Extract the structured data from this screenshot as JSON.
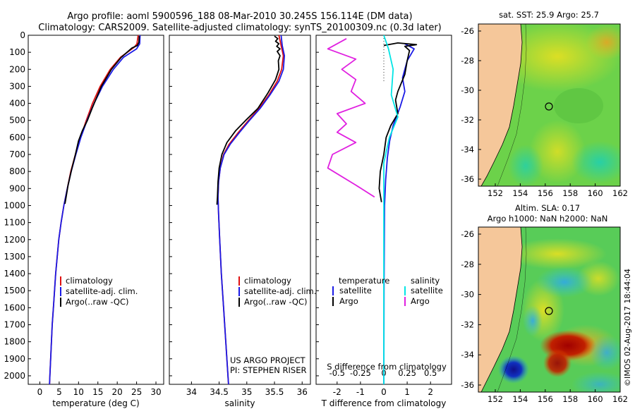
{
  "title": {
    "line1": "Argo profile: aoml 5900596_188 08-Mar-2010 30.245S 156.114E (DM data)",
    "line2": "Climatology: CARS2009. Satellite-adjusted climatology: synTS_20100309.nc (0.3d later)"
  },
  "colors": {
    "climatology": "#e01010",
    "satellite": "#1a1ae6",
    "argo": "#000000",
    "salinity_sat": "#00e5e5",
    "salinity_argo": "#e020e0",
    "land": "#f5c79a"
  },
  "panel_temp": {
    "xlabel": "temperature (deg C)",
    "legend": [
      "climatology",
      "satellite-adj. clim.",
      "Argo(..raw -QC)"
    ]
  },
  "panel_sal": {
    "xlabel": "salinity",
    "legend": [
      "climatology",
      "satellite-adj. clim.",
      "Argo(..raw -QC)"
    ],
    "credit1": "US ARGO PROJECT",
    "credit2": "PI: STEPHEN RISER"
  },
  "panel_diff": {
    "xlabel": "T difference from climatology",
    "top_axis_label": "S difference from climatology",
    "legend_temp_title": "temperature",
    "legend_sal_title": "salinity",
    "legend_temp": [
      "satellite",
      "Argo"
    ],
    "legend_sal": [
      "satellite",
      "Argo"
    ]
  },
  "map_sst": {
    "title": "sat. SST: 25.9 Argo: 25.7",
    "y_ticks": [
      "-26",
      "-28",
      "-30",
      "-32",
      "-34",
      "-36"
    ],
    "x_ticks": [
      "152",
      "154",
      "156",
      "158",
      "160",
      "162"
    ]
  },
  "map_sla": {
    "title1": "Altim. SLA: 0.17",
    "title2": "Argo h1000: NaN h2000: NaN",
    "y_ticks": [
      "-26",
      "-28",
      "-30",
      "-32",
      "-34",
      "-36"
    ],
    "x_ticks": [
      "152",
      "154",
      "156",
      "158",
      "160",
      "162"
    ]
  },
  "stamp": "©IMOS 02-Aug-2017 18:44:04",
  "chart_data": [
    {
      "type": "line",
      "xlabel": "temperature (deg C)",
      "ylabel": "depth",
      "xlim": [
        -3,
        32
      ],
      "ylim": [
        2050,
        0
      ],
      "x_ticks": [
        0,
        5,
        10,
        15,
        20,
        25,
        30
      ],
      "y_ticks": [
        0,
        100,
        200,
        300,
        400,
        500,
        600,
        700,
        800,
        900,
        1000,
        1100,
        1200,
        1300,
        1400,
        1500,
        1600,
        1700,
        1800,
        1900,
        2000
      ],
      "series": [
        {
          "name": "climatology",
          "color": "#e01010",
          "points": [
            [
              25.4,
              0
            ],
            [
              25.1,
              50
            ],
            [
              24.4,
              70
            ],
            [
              20.8,
              130
            ],
            [
              18.2,
              200
            ],
            [
              15.6,
              300
            ],
            [
              13.6,
              400
            ],
            [
              12.0,
              500
            ],
            [
              10.5,
              600
            ],
            [
              9.2,
              700
            ],
            [
              8.0,
              800
            ],
            [
              7.1,
              900
            ],
            [
              6.2,
              1000
            ],
            [
              5.5,
              1100
            ],
            [
              4.9,
              1200
            ],
            [
              4.5,
              1300
            ],
            [
              4.1,
              1400
            ],
            [
              3.8,
              1500
            ],
            [
              3.5,
              1600
            ],
            [
              3.2,
              1700
            ],
            [
              3.0,
              1800
            ],
            [
              2.8,
              1900
            ],
            [
              2.6,
              2000
            ],
            [
              2.5,
              2050
            ]
          ]
        },
        {
          "name": "satellite-adj. clim.",
          "color": "#1a1ae6",
          "points": [
            [
              25.9,
              0
            ],
            [
              25.8,
              50
            ],
            [
              25.0,
              80
            ],
            [
              21.6,
              130
            ],
            [
              19.0,
              200
            ],
            [
              16.2,
              300
            ],
            [
              14.0,
              400
            ],
            [
              12.2,
              500
            ],
            [
              10.6,
              600
            ],
            [
              9.3,
              700
            ],
            [
              8.1,
              800
            ],
            [
              7.1,
              900
            ],
            [
              6.2,
              1000
            ],
            [
              5.5,
              1100
            ],
            [
              4.9,
              1200
            ],
            [
              4.5,
              1300
            ],
            [
              4.1,
              1400
            ],
            [
              3.8,
              1500
            ],
            [
              3.5,
              1600
            ],
            [
              3.2,
              1700
            ],
            [
              3.0,
              1800
            ],
            [
              2.8,
              1900
            ],
            [
              2.6,
              2000
            ],
            [
              2.5,
              2050
            ]
          ]
        },
        {
          "name": "Argo(..raw -QC)",
          "color": "#000000",
          "points": [
            [
              25.7,
              5
            ],
            [
              25.6,
              40
            ],
            [
              25.2,
              60
            ],
            [
              23.8,
              75
            ],
            [
              21.0,
              130
            ],
            [
              18.5,
              200
            ],
            [
              15.9,
              300
            ],
            [
              13.5,
              430
            ],
            [
              12.3,
              500
            ],
            [
              11.0,
              560
            ],
            [
              10.0,
              620
            ],
            [
              9.2,
              700
            ],
            [
              8.2,
              790
            ],
            [
              7.3,
              880
            ],
            [
              6.5,
              990
            ]
          ]
        }
      ]
    },
    {
      "type": "line",
      "xlabel": "salinity",
      "ylabel": "depth",
      "xlim": [
        33.6,
        36.15
      ],
      "ylim": [
        2050,
        0
      ],
      "x_ticks": [
        34,
        34.5,
        35,
        35.5,
        36
      ],
      "series": [
        {
          "name": "climatology",
          "color": "#e01010",
          "points": [
            [
              35.58,
              0
            ],
            [
              35.62,
              60
            ],
            [
              35.66,
              120
            ],
            [
              35.63,
              200
            ],
            [
              35.55,
              270
            ],
            [
              35.4,
              350
            ],
            [
              35.22,
              430
            ],
            [
              35.03,
              500
            ],
            [
              34.85,
              570
            ],
            [
              34.68,
              640
            ],
            [
              34.58,
              700
            ],
            [
              34.52,
              780
            ],
            [
              34.49,
              860
            ],
            [
              34.48,
              950
            ],
            [
              34.49,
              1050
            ],
            [
              34.51,
              1200
            ],
            [
              34.54,
              1400
            ],
            [
              34.58,
              1600
            ],
            [
              34.62,
              1800
            ],
            [
              34.66,
              2000
            ],
            [
              34.67,
              2050
            ]
          ]
        },
        {
          "name": "satellite-adj. clim.",
          "color": "#1a1ae6",
          "points": [
            [
              35.62,
              0
            ],
            [
              35.64,
              60
            ],
            [
              35.68,
              120
            ],
            [
              35.66,
              200
            ],
            [
              35.58,
              270
            ],
            [
              35.42,
              350
            ],
            [
              35.24,
              430
            ],
            [
              35.05,
              500
            ],
            [
              34.87,
              570
            ],
            [
              34.7,
              640
            ],
            [
              34.59,
              700
            ],
            [
              34.52,
              780
            ],
            [
              34.49,
              860
            ],
            [
              34.48,
              950
            ],
            [
              34.49,
              1050
            ],
            [
              34.51,
              1200
            ],
            [
              34.54,
              1400
            ],
            [
              34.58,
              1600
            ],
            [
              34.62,
              1800
            ],
            [
              34.66,
              2000
            ],
            [
              34.67,
              2050
            ]
          ]
        },
        {
          "name": "Argo(..raw -QC)",
          "color": "#000000",
          "points": [
            [
              35.5,
              5
            ],
            [
              35.56,
              20
            ],
            [
              35.52,
              35
            ],
            [
              35.58,
              50
            ],
            [
              35.54,
              65
            ],
            [
              35.6,
              80
            ],
            [
              35.55,
              95
            ],
            [
              35.6,
              120
            ],
            [
              35.57,
              150
            ],
            [
              35.58,
              200
            ],
            [
              35.52,
              260
            ],
            [
              35.38,
              340
            ],
            [
              35.2,
              430
            ],
            [
              34.98,
              500
            ],
            [
              34.8,
              560
            ],
            [
              34.64,
              630
            ],
            [
              34.55,
              700
            ],
            [
              34.5,
              780
            ],
            [
              34.48,
              860
            ],
            [
              34.47,
              950
            ],
            [
              34.46,
              995
            ]
          ]
        }
      ]
    },
    {
      "type": "line",
      "xlabel": "T difference from climatology",
      "top_axis_label": "S difference from climatology",
      "xlim": [
        -2.9,
        2.9
      ],
      "ylim": [
        2050,
        0
      ],
      "x_ticks": [
        -2,
        -1,
        0,
        1,
        2
      ],
      "top_ticks": [
        "-0.5",
        "-0.25",
        "0",
        "0.25",
        "0.5"
      ],
      "series": [
        {
          "name": "temperature satellite",
          "color": "#1a1ae6",
          "points": [
            [
              0.9,
              50
            ],
            [
              1.3,
              80
            ],
            [
              1.0,
              150
            ],
            [
              0.8,
              250
            ],
            [
              0.9,
              330
            ],
            [
              0.7,
              420
            ],
            [
              0.4,
              530
            ],
            [
              0.25,
              620
            ],
            [
              0.15,
              720
            ],
            [
              0.08,
              850
            ],
            [
              0.03,
              1000
            ],
            [
              0.02,
              1200
            ],
            [
              0.01,
              1500
            ],
            [
              0.0,
              2050
            ]
          ]
        },
        {
          "name": "temperature Argo",
          "color": "#000000",
          "points": [
            [
              0.0,
              60
            ],
            [
              0.6,
              45
            ],
            [
              1.4,
              55
            ],
            [
              0.9,
              65
            ],
            [
              1.1,
              90
            ],
            [
              1.0,
              150
            ],
            [
              0.9,
              230
            ],
            [
              0.6,
              330
            ],
            [
              0.5,
              380
            ],
            [
              0.6,
              460
            ],
            [
              0.3,
              530
            ],
            [
              0.1,
              600
            ],
            [
              0.0,
              700
            ],
            [
              -0.15,
              800
            ],
            [
              -0.2,
              900
            ],
            [
              -0.1,
              980
            ]
          ]
        },
        {
          "name": "salinity satellite",
          "color": "#00e5e5",
          "points": [
            [
              0.0,
              0
            ],
            [
              0.05,
              80
            ],
            [
              0.1,
              200
            ],
            [
              0.08,
              350
            ],
            [
              0.15,
              480
            ],
            [
              0.06,
              600
            ],
            [
              0.0,
              750
            ],
            [
              0.0,
              1000
            ],
            [
              0.0,
              1500
            ],
            [
              0.0,
              2050
            ]
          ]
        },
        {
          "name": "salinity Argo",
          "color": "#e020e0",
          "points": [
            [
              -0.4,
              20
            ],
            [
              -0.6,
              80
            ],
            [
              -0.3,
              140
            ],
            [
              -0.45,
              200
            ],
            [
              -0.3,
              260
            ],
            [
              -0.35,
              330
            ],
            [
              -0.2,
              400
            ],
            [
              -0.5,
              460
            ],
            [
              -0.4,
              520
            ],
            [
              -0.5,
              570
            ],
            [
              -0.3,
              630
            ],
            [
              -0.55,
              700
            ],
            [
              -0.6,
              780
            ],
            [
              -0.3,
              880
            ],
            [
              -0.1,
              950
            ]
          ]
        }
      ]
    }
  ]
}
